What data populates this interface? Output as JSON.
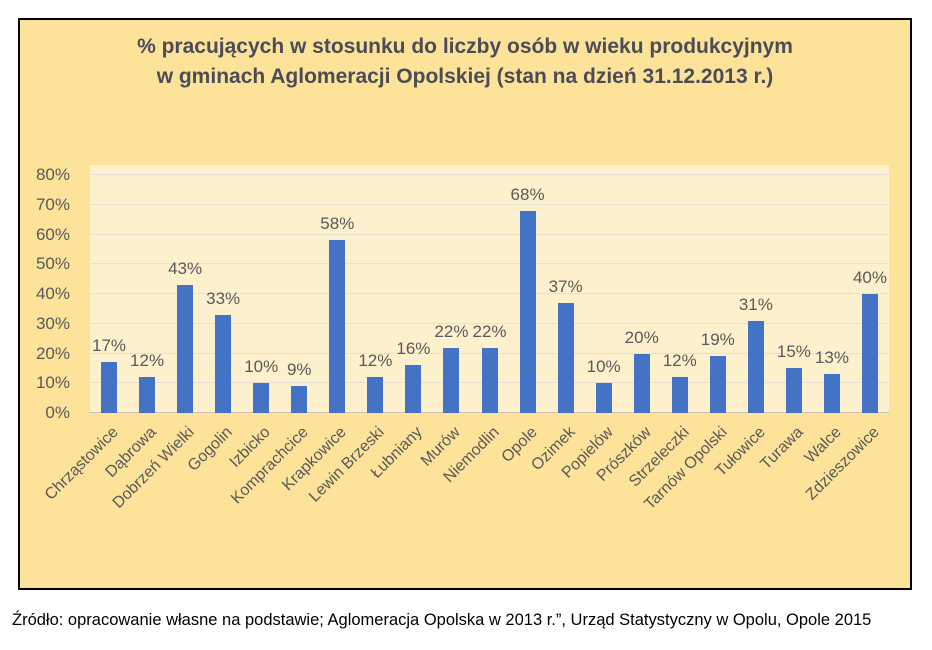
{
  "chart": {
    "title_lines": [
      "% pracujących w stosunku do liczby osób w wieku produkcyjnym",
      "w gminach Aglomeracji Opolskiej (stan na dzień 31.12.2013 r.)"
    ],
    "source": "Źródło: opracowanie własne na podstawie; Aglomeracja Opolska w 2013 r.”, Urząd Statystyczny w Opolu, Opole 2015",
    "colors": {
      "frame_background": "#fde29a",
      "plot_background": "#fdf1cd",
      "bar": "#4472c4",
      "gridline": "#e4e0d4",
      "axis_line": "#c8c3b4",
      "title_text": "#4c4c57",
      "label_text": "#595959",
      "source_text": "#000000",
      "frame_border": "#000000"
    }
  },
  "chart_data": {
    "type": "bar",
    "title": "% pracujących w stosunku do liczby osób w wieku produkcyjnym w gminach Aglomeracji Opolskiej (stan na dzień 31.12.2013 r.)",
    "categories": [
      "Chrząstowice",
      "Dąbrowa",
      "Dobrzeń Wielki",
      "Gogolin",
      "Izbicko",
      "Komprachcice",
      "Krapkowice",
      "Lewin Brzeski",
      "Łubniany",
      "Murów",
      "Niemodlin",
      "Opole",
      "Ozimek",
      "Popielów",
      "Prószków",
      "Strzeleczki",
      "Tarnów Opolski",
      "Tułowice",
      "Turawa",
      "Walce",
      "Zdzieszowice"
    ],
    "values": [
      17,
      12,
      43,
      33,
      10,
      9,
      58,
      12,
      16,
      22,
      22,
      68,
      37,
      10,
      20,
      12,
      19,
      31,
      15,
      13,
      40
    ],
    "data_labels": [
      "17%",
      "12%",
      "43%",
      "33%",
      "10%",
      "9%",
      "58%",
      "12%",
      "16%",
      "22%",
      "22%",
      "68%",
      "37%",
      "10%",
      "20%",
      "12%",
      "19%",
      "31%",
      "15%",
      "13%",
      "40%"
    ],
    "xlabel": "",
    "ylabel": "",
    "ylim": [
      0,
      80
    ],
    "ytick_values": [
      0,
      10,
      20,
      30,
      40,
      50,
      60,
      70,
      80
    ],
    "ytick_labels": [
      "0%",
      "10%",
      "20%",
      "30%",
      "40%",
      "50%",
      "60%",
      "70%",
      "80%"
    ],
    "grid": true,
    "legend": false,
    "bar_color": "#4472c4"
  }
}
